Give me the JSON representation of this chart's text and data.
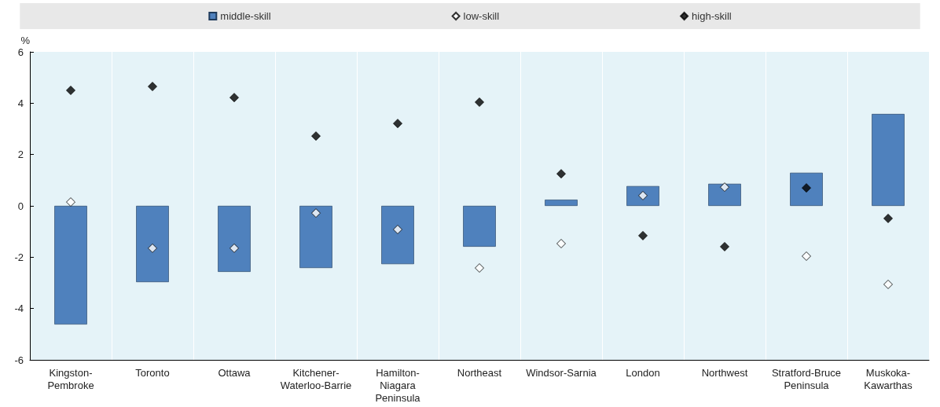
{
  "chart_data": {
    "type": "bar",
    "ylabel": "%",
    "categories": [
      "Kingston-\nPembroke",
      "Toronto",
      "Ottawa",
      "Kitchener-\nWaterloo-Barrie",
      "Hamilton-\nNiagara\nPeninsula",
      "Northeast",
      "Windsor-Sarnia",
      "London",
      "Northwest",
      "Stratford-Bruce\nPeninsula",
      "Muskoka-\nKawarthas"
    ],
    "series": [
      {
        "name": "middle-skill",
        "color": "#4f81bd",
        "values": [
          -4.62,
          -2.97,
          -2.57,
          -2.42,
          -2.27,
          -1.59,
          0.24,
          0.77,
          0.86,
          1.29,
          3.58
        ]
      },
      {
        "name": "low-skill",
        "type": "scatter",
        "color": "#ffffff",
        "values": [
          0.15,
          -1.65,
          -1.65,
          -0.28,
          -0.92,
          -2.42,
          -1.47,
          0.4,
          0.73,
          -1.96,
          -3.06
        ]
      },
      {
        "name": "high-skill",
        "type": "scatter",
        "color": "#000000",
        "values": [
          4.5,
          4.65,
          4.22,
          2.72,
          3.21,
          4.04,
          1.25,
          -1.16,
          -1.59,
          0.7,
          -0.49
        ]
      }
    ],
    "ylim": [
      -6,
      6
    ],
    "yticks": [
      -6,
      -4,
      -2,
      0,
      2,
      4,
      6
    ],
    "grid": false,
    "legend": "top",
    "marker": "diamond"
  }
}
